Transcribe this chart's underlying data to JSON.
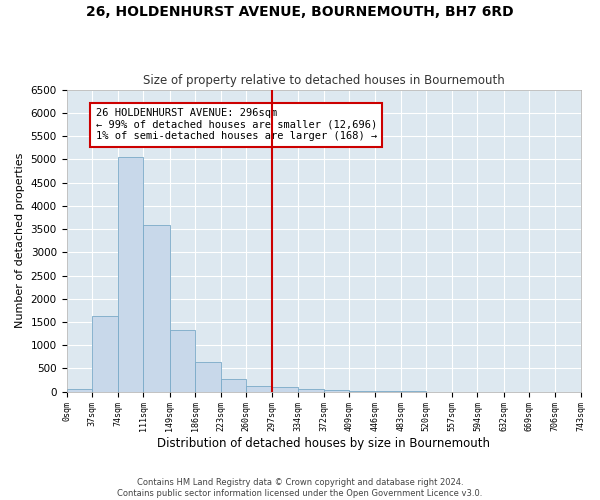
{
  "title": "26, HOLDENHURST AVENUE, BOURNEMOUTH, BH7 6RD",
  "subtitle": "Size of property relative to detached houses in Bournemouth",
  "xlabel": "Distribution of detached houses by size in Bournemouth",
  "ylabel": "Number of detached properties",
  "bar_color": "#c8d8ea",
  "bar_edge_color": "#7aaac8",
  "background_color": "#dde8f0",
  "grid_color": "#ffffff",
  "vline_x": 297,
  "vline_color": "#cc0000",
  "annotation_text": "26 HOLDENHURST AVENUE: 296sqm\n← 99% of detached houses are smaller (12,696)\n1% of semi-detached houses are larger (168) →",
  "annotation_box_color": "#ffffff",
  "annotation_box_edge": "#cc0000",
  "bin_edges": [
    0,
    37,
    74,
    111,
    149,
    186,
    223,
    260,
    297,
    334,
    372,
    409,
    446,
    483,
    520,
    557,
    594,
    632,
    669,
    706,
    743
  ],
  "bar_heights": [
    50,
    1620,
    5050,
    3580,
    1320,
    650,
    270,
    130,
    100,
    60,
    30,
    20,
    10,
    5,
    3,
    2,
    1,
    1,
    0,
    0
  ],
  "ylim": [
    0,
    6500
  ],
  "yticks": [
    0,
    500,
    1000,
    1500,
    2000,
    2500,
    3000,
    3500,
    4000,
    4500,
    5000,
    5500,
    6000,
    6500
  ],
  "footer_line1": "Contains HM Land Registry data © Crown copyright and database right 2024.",
  "footer_line2": "Contains public sector information licensed under the Open Government Licence v3.0."
}
